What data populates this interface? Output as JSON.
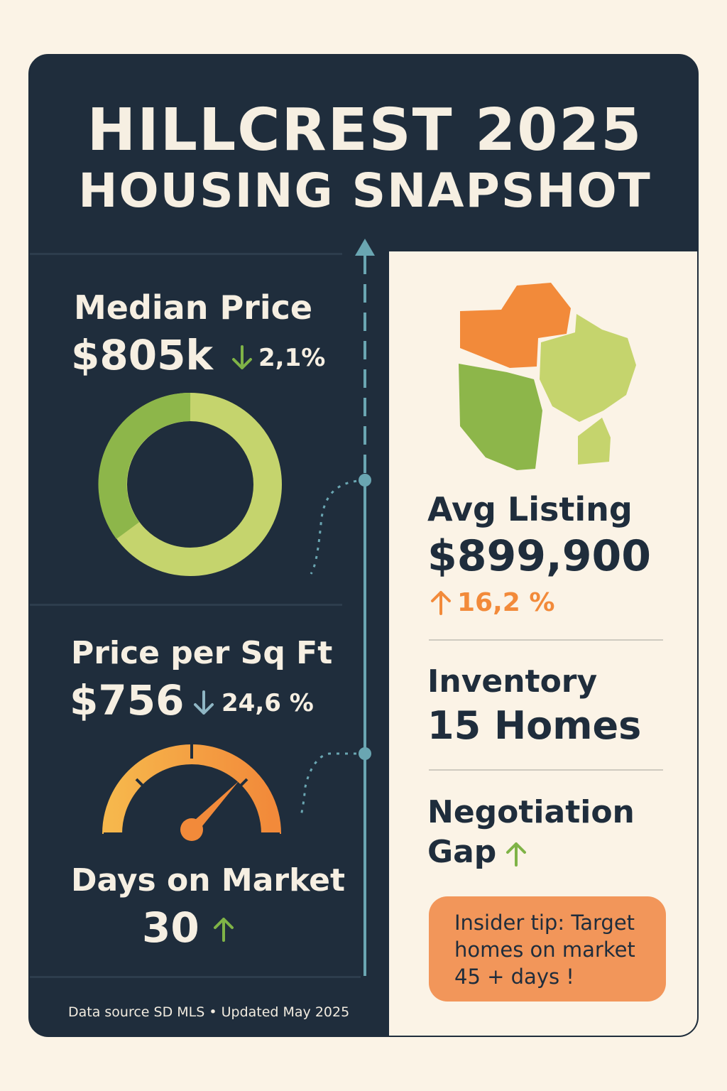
{
  "title": {
    "line1": "HILLCREST 2025",
    "line2": "HOUSING SNAPSHOT"
  },
  "median_price": {
    "label": "Median Price",
    "value": "$805k",
    "change": "2,1%",
    "direction": "down"
  },
  "price_per_sqft": {
    "label": "Price per Sq Ft",
    "value": "$756",
    "change": "24,6 %",
    "direction": "down"
  },
  "days_on_market": {
    "label": "Days on Market",
    "value": "30",
    "direction": "up"
  },
  "avg_listing": {
    "label": "Avg Listing",
    "value": "$899,900",
    "change": "16,2 %",
    "direction": "up"
  },
  "inventory": {
    "label": "Inventory",
    "value": "15 Homes"
  },
  "negotiation": {
    "label_line1": "Negotiation",
    "label_line2": "Gap",
    "direction": "up"
  },
  "tip": {
    "line1": "Insider tip: Target",
    "line2": "homes on market",
    "line3": "45 + days !"
  },
  "footer": "Data source SD MLS • Updated May 2025",
  "colors": {
    "navy": "#1f2d3c",
    "cream": "#fbf3e6",
    "orange": "#f28a3a",
    "green": "#8db64a",
    "light_green": "#c5d46d",
    "teal": "#6aa6b2",
    "up_green": "#7fb347",
    "down_blue": "#8fb6c4"
  },
  "icons": [
    "down-arrow-icon",
    "up-arrow-icon",
    "donut-chart-icon",
    "gauge-icon",
    "region-map-icon"
  ]
}
